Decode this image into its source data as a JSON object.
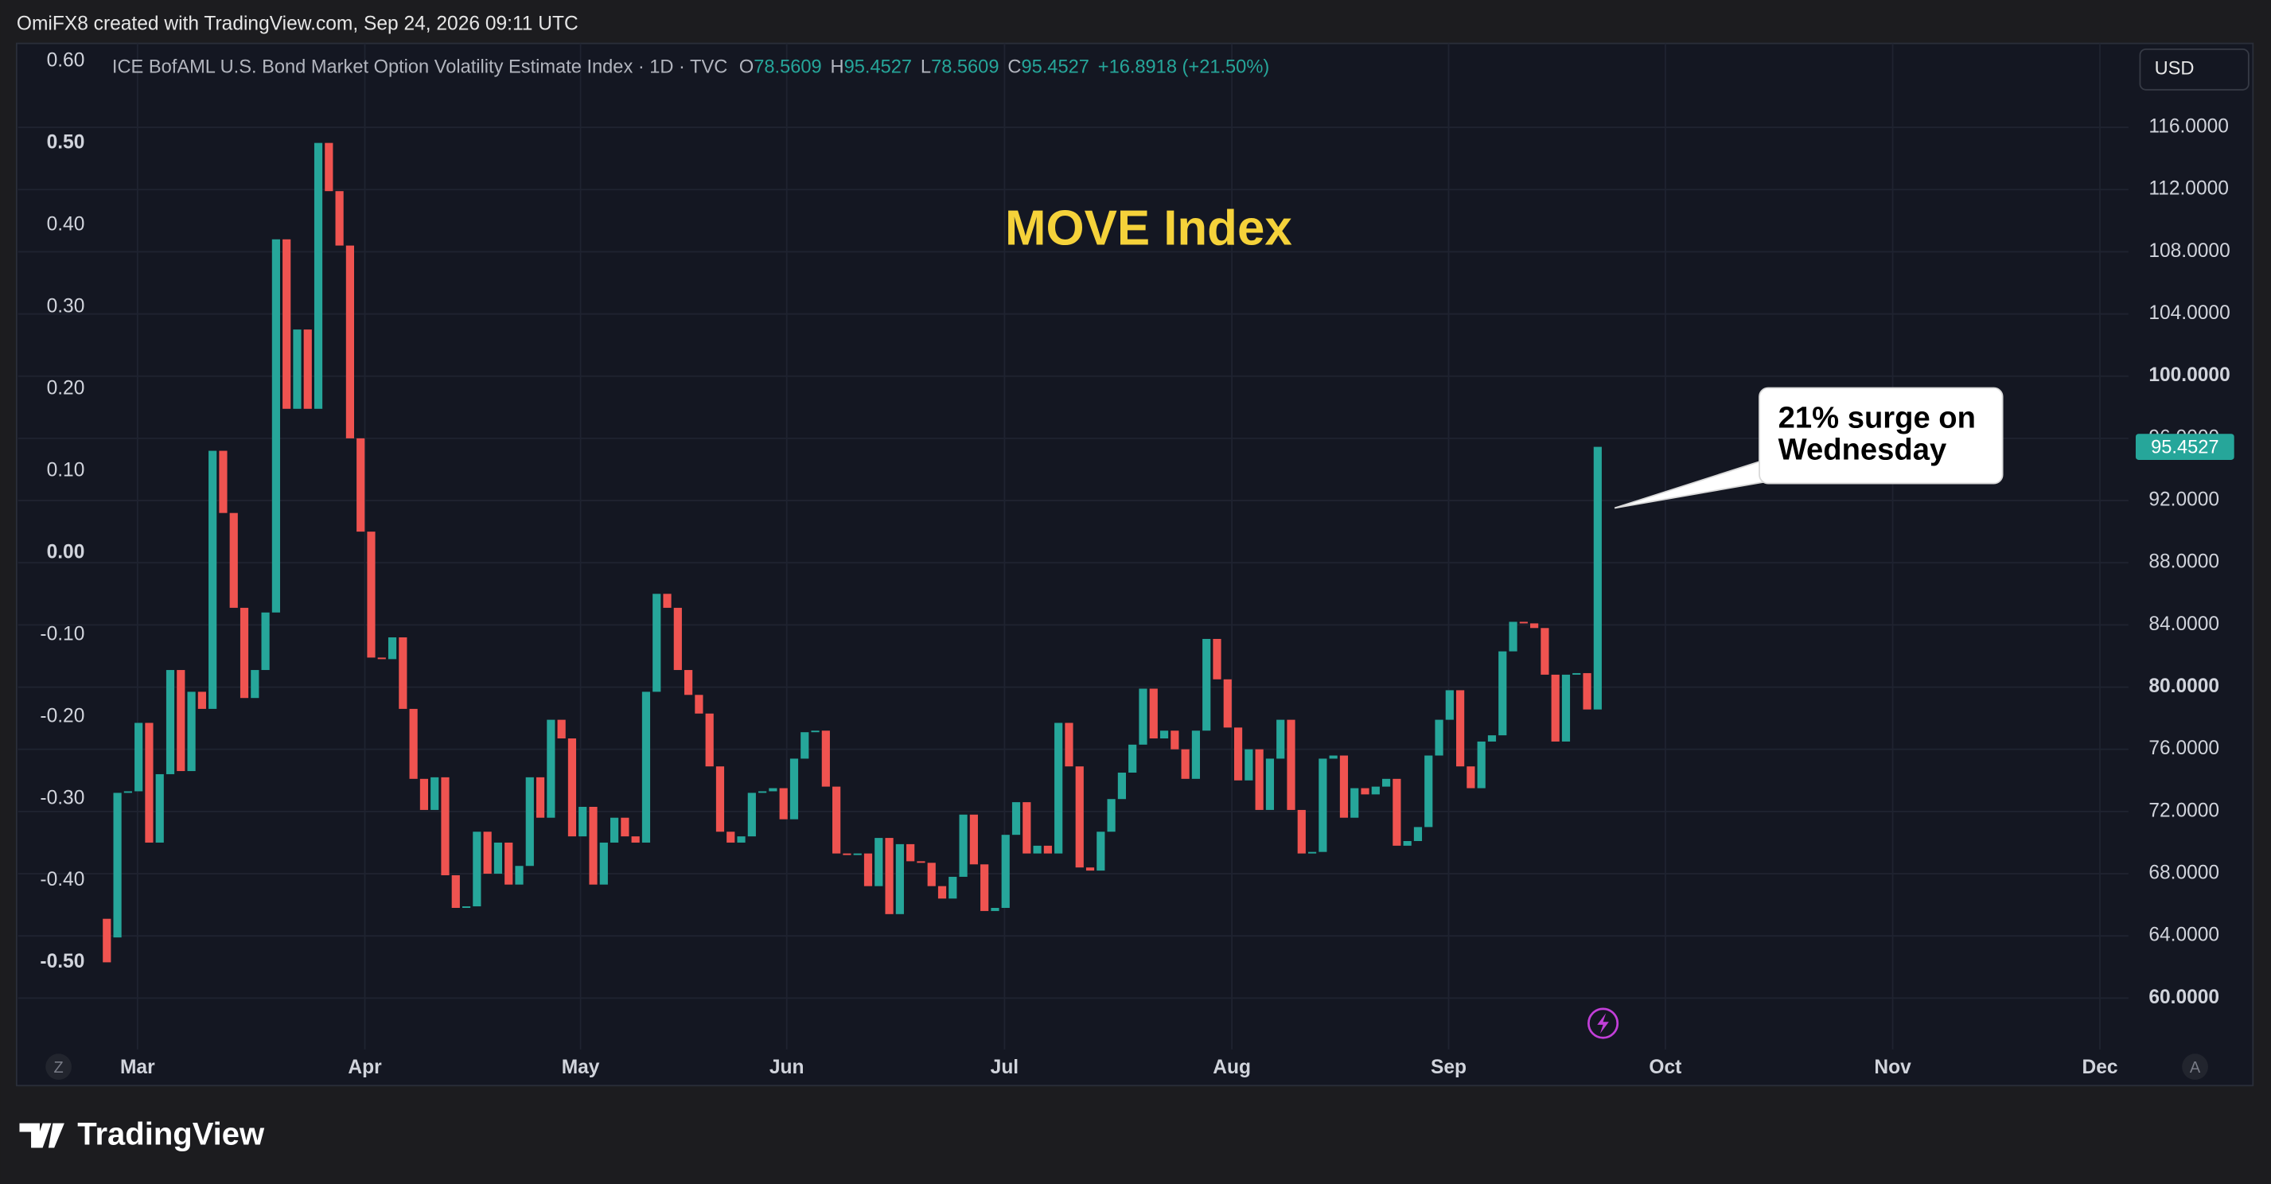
{
  "header": {
    "credit": "OmiFX8 created with TradingView.com, Sep 24, 2026 09:11 UTC",
    "logo": "TradingView"
  },
  "chart_data": {
    "type": "candlestick",
    "title": "MOVE Index",
    "symbol": "ICE BofAML U.S. Bond Market Option Volatility Estimate Index · 1D · TVC",
    "ohlc_labels": [
      "O",
      "H",
      "L",
      "C"
    ],
    "ohlc": [
      78.5609,
      95.4527,
      78.5609,
      95.4527
    ],
    "change": "+16.8918 (+21.50%)",
    "currency": "USD",
    "annotation": [
      "21% surge on",
      "Wednesday"
    ],
    "scale_buttons": [
      "Z",
      "A"
    ],
    "up_color": "#26a69a",
    "down_color": "#ef5350",
    "grid": true,
    "open": [
      65.1,
      63.9,
      73.2,
      73.3,
      77.7,
      70.0,
      74.4,
      81.1,
      74.6,
      79.7,
      78.6,
      95.2,
      91.2,
      85.1,
      79.3,
      81.1,
      84.8,
      108.8,
      97.9,
      103.0,
      97.9,
      115.0,
      111.9,
      108.4,
      96.0,
      90.0,
      81.9,
      81.8,
      83.2,
      78.6,
      74.1,
      72.1,
      74.2,
      67.9,
      65.8,
      65.9,
      70.7,
      68.0,
      70.0,
      67.3,
      68.5,
      74.2,
      71.6,
      77.9,
      76.7,
      70.4,
      72.3,
      67.3,
      70.0,
      71.6,
      70.4,
      70.0,
      79.7,
      86.0,
      85.1,
      81.1,
      79.5,
      78.3,
      74.9,
      70.7,
      70.0,
      70.4,
      73.2,
      73.3,
      73.5,
      71.5,
      75.4,
      77.1,
      77.2,
      73.6,
      69.3,
      69.2,
      69.3,
      67.2,
      70.3,
      65.4,
      69.9,
      68.8,
      68.7,
      67.2,
      66.4,
      67.8,
      71.8,
      68.6,
      65.6,
      65.8,
      70.5,
      72.6,
      69.3,
      69.8,
      69.3,
      77.7,
      74.9,
      68.4,
      68.2,
      70.7,
      72.8,
      74.5,
      76.3,
      79.9,
      76.7,
      77.2,
      76.0,
      74.1,
      77.2,
      83.1,
      80.5,
      77.4,
      74.0,
      76.0,
      72.1,
      75.4,
      77.9,
      72.1,
      69.3,
      69.4,
      75.4,
      75.6,
      71.6,
      73.5,
      73.1,
      73.6,
      74.1,
      69.8,
      70.1,
      71.0,
      75.6,
      77.9,
      79.8,
      74.9,
      73.5,
      76.5,
      76.9,
      82.3,
      84.2,
      84.1,
      83.8,
      80.8,
      76.5,
      80.8,
      80.9,
      78.5609
    ],
    "close": [
      62.3,
      73.2,
      73.3,
      77.7,
      70.0,
      74.4,
      81.1,
      74.6,
      79.7,
      78.6,
      95.2,
      91.2,
      85.1,
      79.3,
      81.1,
      84.8,
      108.8,
      97.9,
      103.0,
      97.9,
      115.0,
      111.9,
      108.4,
      96.0,
      90.0,
      81.9,
      81.8,
      83.2,
      78.6,
      74.1,
      72.1,
      74.2,
      67.9,
      65.8,
      65.9,
      70.7,
      68.0,
      70.0,
      67.3,
      68.5,
      74.2,
      71.6,
      77.9,
      76.7,
      70.4,
      72.3,
      67.3,
      70.0,
      71.6,
      70.4,
      70.0,
      79.7,
      86.0,
      85.1,
      81.1,
      79.5,
      78.3,
      74.9,
      70.7,
      70.0,
      70.4,
      73.2,
      73.3,
      73.5,
      71.5,
      75.4,
      77.1,
      77.2,
      73.6,
      69.3,
      69.2,
      69.3,
      67.2,
      70.3,
      65.4,
      69.9,
      68.8,
      68.7,
      67.2,
      66.4,
      67.8,
      71.8,
      68.6,
      65.6,
      65.8,
      70.5,
      72.6,
      69.3,
      69.8,
      69.3,
      77.7,
      74.9,
      68.4,
      68.2,
      70.7,
      72.8,
      74.5,
      76.3,
      79.9,
      76.7,
      77.2,
      76.0,
      74.1,
      77.2,
      83.1,
      80.5,
      77.4,
      74.0,
      76.0,
      72.1,
      75.4,
      77.9,
      72.1,
      69.3,
      69.4,
      75.4,
      75.6,
      71.6,
      73.5,
      73.1,
      73.6,
      74.1,
      69.8,
      70.1,
      71.0,
      75.6,
      77.9,
      79.8,
      74.9,
      73.5,
      76.5,
      76.9,
      82.3,
      84.2,
      84.1,
      83.8,
      80.8,
      76.5,
      80.8,
      80.9,
      78.5609,
      95.4527
    ],
    "xlim": [
      -8.4,
      191.2
    ],
    "xticks": [
      {
        "value": 2.9,
        "label": "Mar"
      },
      {
        "value": 24.4,
        "label": "Apr"
      },
      {
        "value": 44.8,
        "label": "May"
      },
      {
        "value": 64.3,
        "label": "Jun"
      },
      {
        "value": 84.9,
        "label": "Jul"
      },
      {
        "value": 106.4,
        "label": "Aug"
      },
      {
        "value": 126.9,
        "label": "Sep"
      },
      {
        "value": 147.4,
        "label": "Oct"
      },
      {
        "value": 168.9,
        "label": "Nov"
      },
      {
        "value": 188.5,
        "label": "Dec"
      }
    ],
    "ylim": [
      56.7,
      121.4
    ],
    "yticks": [
      {
        "value": 60,
        "label": "60.0000"
      },
      {
        "value": 64,
        "label": "64.0000"
      },
      {
        "value": 68,
        "label": "68.0000"
      },
      {
        "value": 72,
        "label": "72.0000"
      },
      {
        "value": 76,
        "label": "76.0000"
      },
      {
        "value": 80,
        "label": "80.0000"
      },
      {
        "value": 84,
        "label": "84.0000"
      },
      {
        "value": 88,
        "label": "88.0000"
      },
      {
        "value": 92,
        "label": "92.0000"
      },
      {
        "value": 96,
        "label": "96.0000"
      },
      {
        "value": 100,
        "label": "100.0000"
      },
      {
        "value": 104,
        "label": "104.0000"
      },
      {
        "value": 108,
        "label": "108.0000"
      },
      {
        "value": 112,
        "label": "112.0000"
      },
      {
        "value": 116,
        "label": "116.0000"
      }
    ],
    "y2lim": [
      -0.606,
      0.622
    ],
    "y2ticks": [
      {
        "value": 0.6,
        "label": "0.60"
      },
      {
        "value": 0.5,
        "label": "0.50"
      },
      {
        "value": 0.4,
        "label": "0.40"
      },
      {
        "value": 0.3,
        "label": "0.30"
      },
      {
        "value": 0.2,
        "label": "0.20"
      },
      {
        "value": 0.1,
        "label": "0.10"
      },
      {
        "value": 0,
        "label": "0.00"
      },
      {
        "value": -0.1,
        "label": "-0.10"
      },
      {
        "value": -0.2,
        "label": "-0.20"
      },
      {
        "value": -0.3,
        "label": "-0.30"
      },
      {
        "value": -0.4,
        "label": "-0.40"
      },
      {
        "value": -0.5,
        "label": "-0.50"
      }
    ]
  }
}
